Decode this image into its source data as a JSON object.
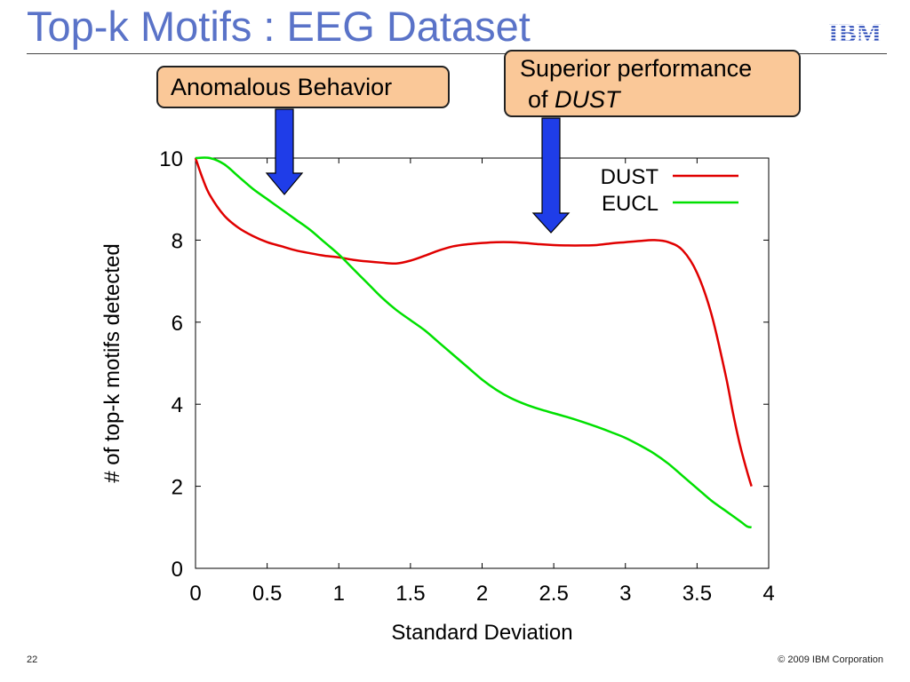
{
  "slide": {
    "title": "Top-k Motifs : EEG Dataset",
    "logo_text": "IBM",
    "page_number": "22",
    "copyright": "© 2009 IBM Corporation"
  },
  "callouts": {
    "anomalous": "Anomalous Behavior",
    "superior_line1": "Superior performance",
    "superior_line2_prefix": "of ",
    "superior_line2_emph": "DUST"
  },
  "colors": {
    "title": "#5a73c8",
    "callout_fill": "#fac898",
    "arrow_fill": "#1f3de8",
    "dust": "#e00000",
    "eucl": "#00e000"
  },
  "chart_data": {
    "type": "line",
    "title": "",
    "xlabel": "Standard Deviation",
    "ylabel": "# of top-k motifs detected",
    "xlim": [
      0,
      4
    ],
    "ylim": [
      0,
      10
    ],
    "xticks": [
      "0",
      "0.5",
      "1",
      "1.5",
      "2",
      "2.5",
      "3",
      "3.5",
      "4"
    ],
    "yticks": [
      "0",
      "2",
      "4",
      "6",
      "8",
      "10"
    ],
    "legend": "top-right",
    "grid": false,
    "series": [
      {
        "name": "DUST",
        "color": "#e00000",
        "x": [
          0,
          0.05,
          0.1,
          0.2,
          0.3,
          0.4,
          0.5,
          0.6,
          0.7,
          0.8,
          0.9,
          1.0,
          1.1,
          1.2,
          1.3,
          1.4,
          1.5,
          1.6,
          1.7,
          1.8,
          1.9,
          2.0,
          2.1,
          2.2,
          2.3,
          2.4,
          2.5,
          2.6,
          2.7,
          2.8,
          2.9,
          3.0,
          3.1,
          3.2,
          3.3,
          3.4,
          3.5,
          3.6,
          3.7,
          3.75,
          3.8,
          3.85,
          3.88
        ],
        "y": [
          10,
          9.5,
          9.1,
          8.6,
          8.3,
          8.1,
          7.95,
          7.85,
          7.75,
          7.68,
          7.62,
          7.58,
          7.52,
          7.48,
          7.45,
          7.43,
          7.5,
          7.62,
          7.75,
          7.85,
          7.9,
          7.93,
          7.95,
          7.95,
          7.93,
          7.9,
          7.88,
          7.87,
          7.87,
          7.88,
          7.92,
          7.95,
          7.98,
          8.0,
          7.95,
          7.75,
          7.2,
          6.2,
          4.7,
          3.8,
          3.0,
          2.35,
          2.0
        ]
      },
      {
        "name": "EUCL",
        "color": "#00e000",
        "x": [
          0,
          0.1,
          0.2,
          0.3,
          0.4,
          0.5,
          0.6,
          0.7,
          0.8,
          0.9,
          1.0,
          1.1,
          1.2,
          1.3,
          1.4,
          1.5,
          1.6,
          1.7,
          1.8,
          1.9,
          2.0,
          2.1,
          2.2,
          2.3,
          2.4,
          2.5,
          2.6,
          2.7,
          2.8,
          2.9,
          3.0,
          3.1,
          3.2,
          3.3,
          3.4,
          3.5,
          3.6,
          3.7,
          3.8,
          3.85,
          3.88
        ],
        "y": [
          10,
          10,
          9.85,
          9.55,
          9.25,
          9.0,
          8.75,
          8.5,
          8.25,
          7.95,
          7.65,
          7.3,
          6.95,
          6.6,
          6.3,
          6.05,
          5.8,
          5.5,
          5.2,
          4.9,
          4.6,
          4.35,
          4.15,
          4.0,
          3.88,
          3.78,
          3.68,
          3.57,
          3.45,
          3.32,
          3.18,
          3.0,
          2.8,
          2.55,
          2.25,
          1.95,
          1.65,
          1.4,
          1.15,
          1.02,
          1.0
        ]
      }
    ]
  }
}
